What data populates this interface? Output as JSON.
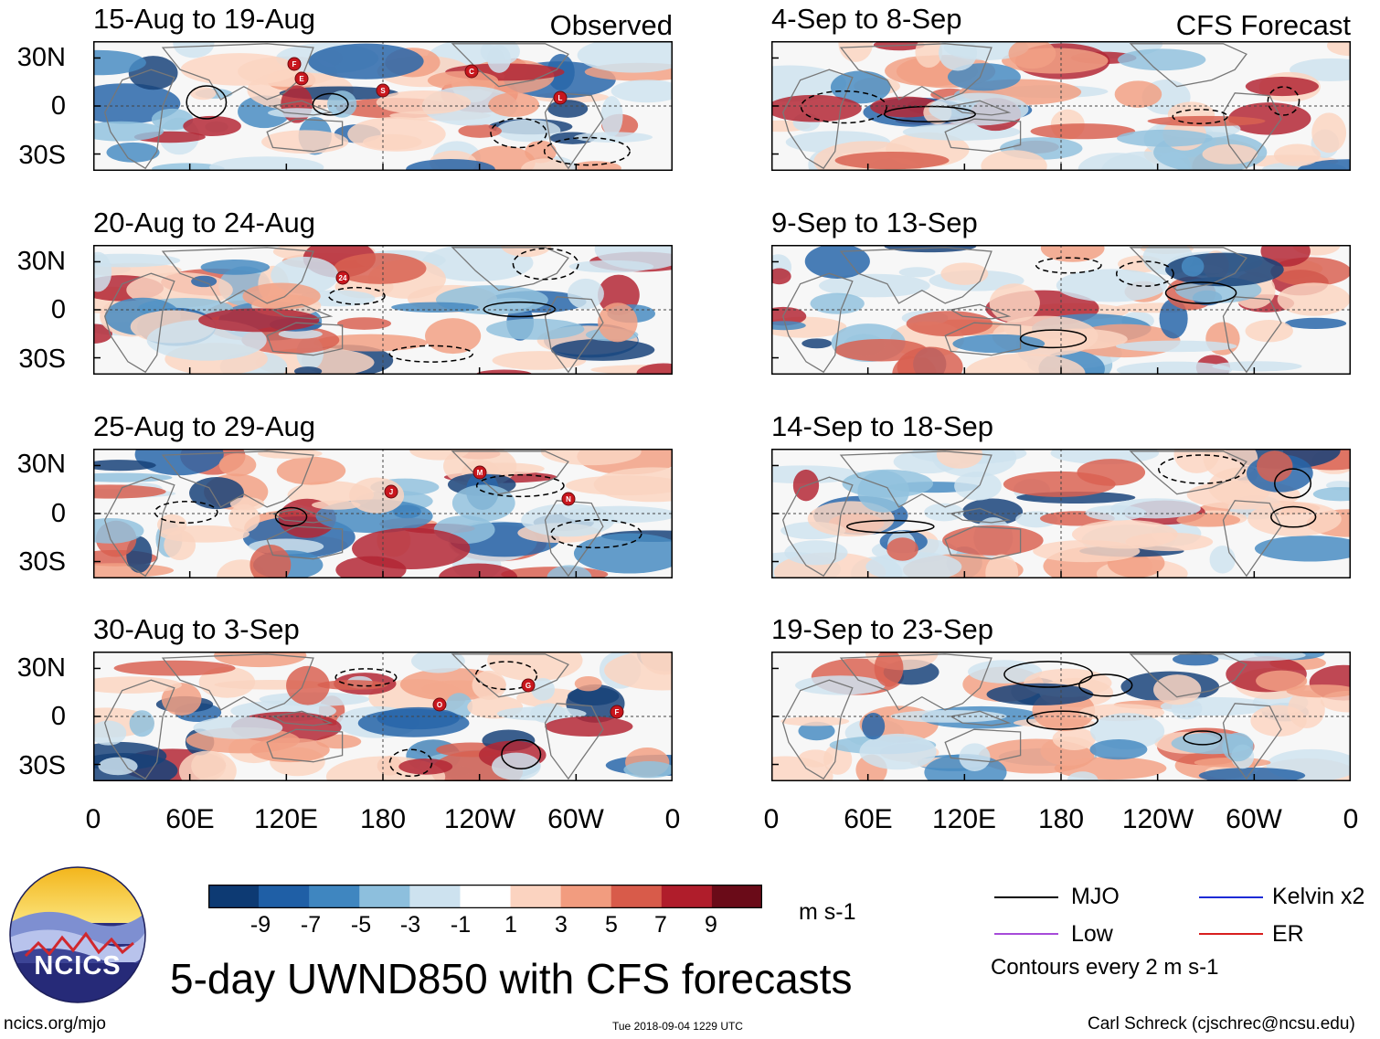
{
  "header": {
    "left_tag": "Observed",
    "right_tag": "CFS Forecast"
  },
  "panels": [
    {
      "title": "15-Aug to 19-Aug",
      "storms": [
        "F",
        "S",
        "C",
        "L",
        "E"
      ]
    },
    {
      "title": "20-Aug to 24-Aug",
      "storms": [
        "24"
      ]
    },
    {
      "title": "25-Aug to 29-Aug",
      "storms": [
        "J",
        "M",
        "N"
      ]
    },
    {
      "title": "30-Aug to 3-Sep",
      "storms": [
        "O",
        "G",
        "F"
      ]
    },
    {
      "title": "4-Sep to 8-Sep",
      "storms": []
    },
    {
      "title": "9-Sep to 13-Sep",
      "storms": []
    },
    {
      "title": "14-Sep to 18-Sep",
      "storms": []
    },
    {
      "title": "19-Sep to 23-Sep",
      "storms": []
    }
  ],
  "axes": {
    "lat_labels": [
      "30N",
      "0",
      "30S"
    ],
    "lon_labels": [
      "0",
      "60E",
      "120E",
      "180",
      "120W",
      "60W",
      "0"
    ]
  },
  "colorbar": {
    "labels": [
      "-9",
      "-7",
      "-5",
      "-3",
      "-1",
      "1",
      "3",
      "5",
      "7",
      "9"
    ],
    "colors": [
      "#0d3a73",
      "#1f5fa6",
      "#3f86c0",
      "#8dbfdd",
      "#cde2ef",
      "#ffffff",
      "#fbd3c0",
      "#f29c7f",
      "#d85b4a",
      "#b01d2b",
      "#6a0b18"
    ],
    "units": "m s-1"
  },
  "legend": {
    "items": [
      {
        "label": "MJO",
        "color": "#000000"
      },
      {
        "label": "Kelvin x2",
        "color": "#1d2bd6"
      },
      {
        "label": "Low",
        "color": "#a64bd9"
      },
      {
        "label": "ER",
        "color": "#d81e1e"
      }
    ],
    "contour_note": "Contours every 2 m s-1"
  },
  "logo_text": "NCICS",
  "title": "5-day UWND850 with CFS forecasts",
  "footer": {
    "left": "ncics.org/mjo",
    "center": "Tue 2018-09-04 1229 UTC",
    "right": "Carl Schreck (cjschrec@ncsu.edu)"
  },
  "chart_data": {
    "type": "heatmap",
    "variable": "850-hPa zonal wind anomaly, 5-day mean",
    "units": "m s-1",
    "color_levels": [
      -9,
      -7,
      -5,
      -3,
      -1,
      1,
      3,
      5,
      7,
      9
    ],
    "lat_ticks": [
      "30N",
      "0",
      "30S"
    ],
    "lon_ticks": [
      "0",
      "60E",
      "120E",
      "180",
      "120W",
      "60W",
      "0"
    ],
    "contours": "every 2 m s-1",
    "observed_periods": [
      "15-Aug to 19-Aug",
      "20-Aug to 24-Aug",
      "25-Aug to 29-Aug",
      "30-Aug to 3-Sep"
    ],
    "forecast_periods": [
      "4-Sep to 8-Sep",
      "9-Sep to 13-Sep",
      "14-Sep to 18-Sep",
      "19-Sep to 23-Sep"
    ]
  }
}
